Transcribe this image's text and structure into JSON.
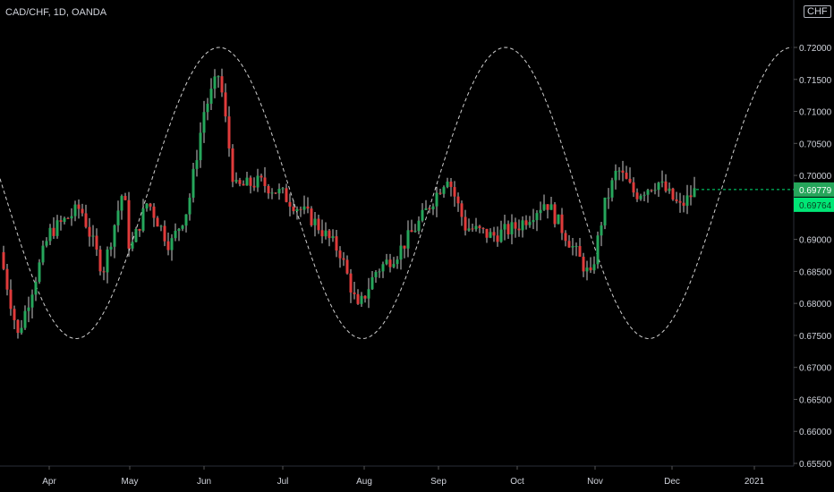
{
  "title": "CAD/CHF, 1D, OANDA",
  "currency_button": "CHF",
  "colors": {
    "up": "#26a65b",
    "down": "#e03b3b",
    "wick": "#c8c8c8",
    "cycle": "#d0d0d0",
    "axis_text": "#d1d4dc",
    "last_price_label": "#26a65b",
    "line_label": "#00e676"
  },
  "chart_data": {
    "type": "candlestick",
    "ylim": [
      0.655,
      0.72
    ],
    "yticks": [
      "0.72000",
      "0.71500",
      "0.71000",
      "0.70500",
      "0.70000",
      "0.69500",
      "0.69000",
      "0.68500",
      "0.68000",
      "0.67500",
      "0.67000",
      "0.66500",
      "0.66000",
      "0.65500"
    ],
    "xticks": [
      "Apr",
      "May",
      "Jun",
      "Jul",
      "Aug",
      "Sep",
      "Oct",
      "Nov",
      "Dec",
      "2021"
    ],
    "price_labels": [
      "0.69779",
      "0.69764"
    ],
    "cycle": {
      "style": "dashed sine",
      "peaks": [
        "Jun",
        "Sep/Oct",
        "2021"
      ],
      "troughs": [
        "Apr",
        "Aug",
        "Dec"
      ],
      "max": 0.72,
      "min": 0.6745
    },
    "monthly_close_approx": [
      {
        "month": "Apr",
        "close": 0.685
      },
      {
        "month": "May",
        "close": 0.69
      },
      {
        "month": "Jun",
        "close": 0.71
      },
      {
        "month": "Jul",
        "close": 0.696
      },
      {
        "month": "Aug",
        "close": 0.68
      },
      {
        "month": "Sep",
        "close": 0.696
      },
      {
        "month": "Oct",
        "close": 0.691
      },
      {
        "month": "Nov",
        "close": 0.69
      },
      {
        "month": "Dec",
        "close": 0.6975
      }
    ]
  }
}
